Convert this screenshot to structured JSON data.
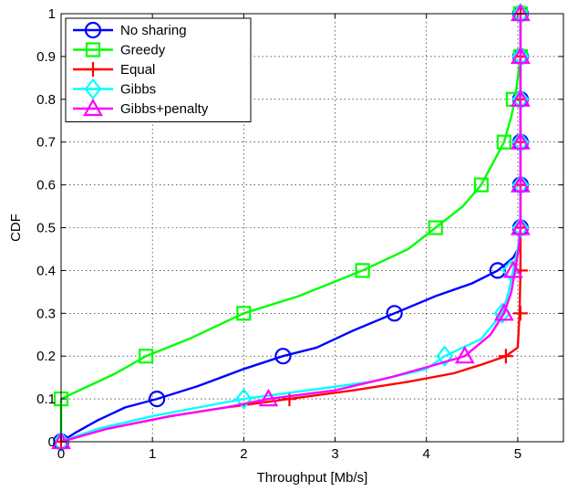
{
  "chart_data": {
    "type": "line",
    "title": "",
    "xlabel": "Throughput [Mb/s]",
    "ylabel": "CDF",
    "xlim": [
      0,
      5.5
    ],
    "ylim": [
      0,
      1
    ],
    "xticks": [
      0,
      1,
      2,
      3,
      4,
      5
    ],
    "xtick_labels": [
      "0",
      "1",
      "2",
      "3",
      "4",
      "5"
    ],
    "yticks": [
      0,
      0.1,
      0.2,
      0.3,
      0.4,
      0.5,
      0.6,
      0.7,
      0.8,
      0.9,
      1
    ],
    "ytick_labels": [
      "0",
      "0.1",
      "0.2",
      "0.3",
      "0.4",
      "0.5",
      "0.6",
      "0.7",
      "0.8",
      "0.9",
      "1"
    ],
    "grid": true,
    "legend_position": "top-left",
    "series": [
      {
        "name": "No sharing",
        "color": "#0000ff",
        "marker": "circle",
        "points": [
          [
            0,
            0
          ],
          [
            0.15,
            0.02
          ],
          [
            0.4,
            0.05
          ],
          [
            0.7,
            0.08
          ],
          [
            1.05,
            0.1
          ],
          [
            1.5,
            0.13
          ],
          [
            2.0,
            0.17
          ],
          [
            2.43,
            0.2
          ],
          [
            2.8,
            0.22
          ],
          [
            3.2,
            0.26
          ],
          [
            3.65,
            0.3
          ],
          [
            4.1,
            0.34
          ],
          [
            4.5,
            0.37
          ],
          [
            4.78,
            0.4
          ],
          [
            4.95,
            0.43
          ],
          [
            5.03,
            0.46
          ],
          [
            5.03,
            0.5
          ],
          [
            5.03,
            1.0
          ]
        ],
        "markers": [
          [
            0,
            0
          ],
          [
            1.05,
            0.1
          ],
          [
            2.43,
            0.2
          ],
          [
            3.65,
            0.3
          ],
          [
            4.78,
            0.4
          ],
          [
            5.03,
            0.5
          ],
          [
            5.03,
            0.6
          ],
          [
            5.03,
            0.7
          ],
          [
            5.03,
            0.8
          ],
          [
            5.03,
            0.9
          ],
          [
            5.03,
            1.0
          ]
        ]
      },
      {
        "name": "Greedy",
        "color": "#00ff00",
        "marker": "square",
        "points": [
          [
            0,
            0
          ],
          [
            0,
            0.1
          ],
          [
            0.3,
            0.13
          ],
          [
            0.6,
            0.16
          ],
          [
            0.93,
            0.2
          ],
          [
            1.4,
            0.24
          ],
          [
            2.0,
            0.3
          ],
          [
            2.6,
            0.34
          ],
          [
            3.3,
            0.4
          ],
          [
            3.8,
            0.45
          ],
          [
            4.1,
            0.5
          ],
          [
            4.4,
            0.55
          ],
          [
            4.6,
            0.6
          ],
          [
            4.75,
            0.66
          ],
          [
            4.85,
            0.7
          ],
          [
            4.93,
            0.76
          ],
          [
            4.97,
            0.8
          ],
          [
            5.0,
            0.85
          ],
          [
            5.03,
            0.9
          ],
          [
            5.03,
            1.0
          ]
        ],
        "markers": [
          [
            0,
            0.1
          ],
          [
            0.93,
            0.2
          ],
          [
            2.0,
            0.3
          ],
          [
            3.3,
            0.4
          ],
          [
            4.1,
            0.5
          ],
          [
            4.6,
            0.6
          ],
          [
            4.85,
            0.7
          ],
          [
            4.95,
            0.8
          ],
          [
            5.03,
            0.9
          ],
          [
            5.03,
            1.0
          ]
        ]
      },
      {
        "name": "Equal",
        "color": "#ff0000",
        "marker": "plus",
        "points": [
          [
            0,
            0
          ],
          [
            0.5,
            0.03
          ],
          [
            1.2,
            0.06
          ],
          [
            1.8,
            0.08
          ],
          [
            2.5,
            0.1
          ],
          [
            3.2,
            0.12
          ],
          [
            3.8,
            0.14
          ],
          [
            4.3,
            0.16
          ],
          [
            4.6,
            0.18
          ],
          [
            4.87,
            0.2
          ],
          [
            5.0,
            0.22
          ],
          [
            5.02,
            0.3
          ],
          [
            5.03,
            0.4
          ],
          [
            5.03,
            1.0
          ]
        ],
        "markers": [
          [
            0,
            0
          ],
          [
            2.5,
            0.1
          ],
          [
            4.87,
            0.2
          ],
          [
            5.03,
            0.3
          ],
          [
            5.03,
            0.4
          ],
          [
            5.03,
            0.5
          ],
          [
            5.03,
            0.6
          ],
          [
            5.03,
            0.7
          ],
          [
            5.03,
            0.8
          ],
          [
            5.03,
            0.9
          ],
          [
            5.03,
            1.0
          ]
        ]
      },
      {
        "name": "Gibbs",
        "color": "#00ffff",
        "marker": "diamond",
        "points": [
          [
            0,
            0
          ],
          [
            0.4,
            0.03
          ],
          [
            1.0,
            0.06
          ],
          [
            1.5,
            0.08
          ],
          [
            2.0,
            0.1
          ],
          [
            2.7,
            0.12
          ],
          [
            3.4,
            0.14
          ],
          [
            4.0,
            0.17
          ],
          [
            4.2,
            0.2
          ],
          [
            4.6,
            0.24
          ],
          [
            4.83,
            0.3
          ],
          [
            4.9,
            0.35
          ],
          [
            4.95,
            0.4
          ],
          [
            5.0,
            0.45
          ],
          [
            5.03,
            0.5
          ],
          [
            5.03,
            1.0
          ]
        ],
        "markers": [
          [
            0,
            0
          ],
          [
            2.0,
            0.1
          ],
          [
            4.2,
            0.2
          ],
          [
            4.83,
            0.3
          ],
          [
            4.92,
            0.4
          ],
          [
            5.03,
            0.5
          ],
          [
            5.03,
            0.6
          ],
          [
            5.03,
            0.7
          ],
          [
            5.03,
            0.8
          ],
          [
            5.03,
            0.9
          ],
          [
            5.03,
            1.0
          ]
        ]
      },
      {
        "name": "Gibbs+penalty",
        "color": "#ff00ff",
        "marker": "triangle",
        "points": [
          [
            0,
            0
          ],
          [
            0.5,
            0.03
          ],
          [
            1.2,
            0.06
          ],
          [
            1.8,
            0.08
          ],
          [
            2.27,
            0.1
          ],
          [
            3.0,
            0.12
          ],
          [
            3.6,
            0.15
          ],
          [
            4.1,
            0.18
          ],
          [
            4.42,
            0.2
          ],
          [
            4.7,
            0.25
          ],
          [
            4.85,
            0.3
          ],
          [
            4.93,
            0.35
          ],
          [
            4.97,
            0.4
          ],
          [
            5.01,
            0.45
          ],
          [
            5.03,
            0.5
          ],
          [
            5.03,
            1.0
          ]
        ],
        "markers": [
          [
            0,
            0
          ],
          [
            2.27,
            0.1
          ],
          [
            4.42,
            0.2
          ],
          [
            4.85,
            0.3
          ],
          [
            4.95,
            0.4
          ],
          [
            5.03,
            0.5
          ],
          [
            5.03,
            0.6
          ],
          [
            5.03,
            0.7
          ],
          [
            5.03,
            0.8
          ],
          [
            5.03,
            0.9
          ],
          [
            5.03,
            1.0
          ]
        ]
      }
    ]
  }
}
